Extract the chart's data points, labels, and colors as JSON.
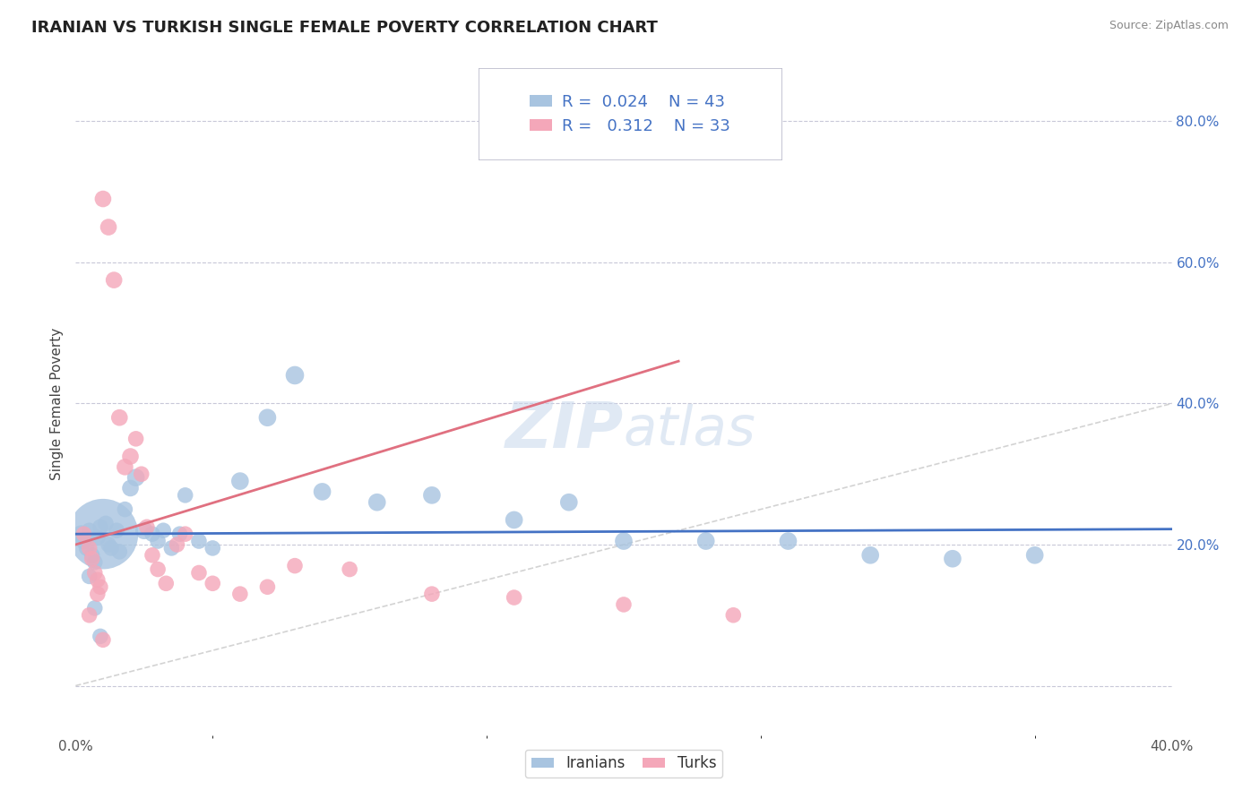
{
  "title": "IRANIAN VS TURKISH SINGLE FEMALE POVERTY CORRELATION CHART",
  "source": "Source: ZipAtlas.com",
  "ylabel": "Single Female Poverty",
  "iranian_R": "0.024",
  "iranian_N": "43",
  "turkish_R": "0.312",
  "turkish_N": "33",
  "iranian_color": "#a8c4e0",
  "turkish_color": "#f4a7b9",
  "iranian_line_color": "#4472c4",
  "turkish_line_color": "#e07080",
  "diagonal_color": "#c8c8c8",
  "legend_label_iranian": "Iranians",
  "legend_label_turkish": "Turks",
  "watermark_zip": "ZIP",
  "watermark_atlas": "atlas",
  "xmin": 0.0,
  "xmax": 0.4,
  "ymin": -0.07,
  "ymax": 0.87,
  "ytick_vals": [
    0.0,
    0.2,
    0.4,
    0.6,
    0.8
  ],
  "iran_x": [
    0.002,
    0.003,
    0.004,
    0.005,
    0.006,
    0.007,
    0.008,
    0.009,
    0.01,
    0.011,
    0.012,
    0.013,
    0.015,
    0.016,
    0.018,
    0.02,
    0.022,
    0.025,
    0.028,
    0.03,
    0.032,
    0.035,
    0.038,
    0.04,
    0.045,
    0.05,
    0.06,
    0.07,
    0.08,
    0.09,
    0.11,
    0.13,
    0.16,
    0.18,
    0.2,
    0.23,
    0.26,
    0.29,
    0.32,
    0.35,
    0.005,
    0.007,
    0.009
  ],
  "iran_y": [
    0.215,
    0.205,
    0.195,
    0.22,
    0.185,
    0.175,
    0.21,
    0.225,
    0.215,
    0.23,
    0.2,
    0.195,
    0.22,
    0.19,
    0.25,
    0.28,
    0.295,
    0.22,
    0.215,
    0.205,
    0.22,
    0.195,
    0.215,
    0.27,
    0.205,
    0.195,
    0.29,
    0.38,
    0.44,
    0.275,
    0.26,
    0.27,
    0.235,
    0.26,
    0.205,
    0.205,
    0.205,
    0.185,
    0.18,
    0.185,
    0.155,
    0.11,
    0.07
  ],
  "iran_size": [
    200,
    180,
    160,
    160,
    160,
    160,
    160,
    160,
    3200,
    160,
    160,
    160,
    160,
    160,
    160,
    180,
    200,
    200,
    160,
    160,
    160,
    160,
    160,
    160,
    160,
    160,
    200,
    200,
    220,
    200,
    200,
    200,
    200,
    200,
    200,
    200,
    200,
    200,
    200,
    200,
    160,
    160,
    160
  ],
  "turk_x": [
    0.003,
    0.005,
    0.006,
    0.007,
    0.008,
    0.009,
    0.01,
    0.012,
    0.014,
    0.016,
    0.018,
    0.02,
    0.022,
    0.024,
    0.026,
    0.028,
    0.03,
    0.033,
    0.037,
    0.04,
    0.045,
    0.05,
    0.06,
    0.07,
    0.08,
    0.1,
    0.13,
    0.16,
    0.2,
    0.24,
    0.005,
    0.008,
    0.01
  ],
  "turk_y": [
    0.215,
    0.195,
    0.18,
    0.16,
    0.15,
    0.14,
    0.69,
    0.65,
    0.575,
    0.38,
    0.31,
    0.325,
    0.35,
    0.3,
    0.225,
    0.185,
    0.165,
    0.145,
    0.2,
    0.215,
    0.16,
    0.145,
    0.13,
    0.14,
    0.17,
    0.165,
    0.13,
    0.125,
    0.115,
    0.1,
    0.1,
    0.13,
    0.065
  ],
  "turk_size": [
    160,
    160,
    160,
    160,
    160,
    160,
    180,
    180,
    180,
    180,
    180,
    180,
    160,
    160,
    160,
    160,
    160,
    160,
    160,
    160,
    160,
    160,
    160,
    160,
    160,
    160,
    160,
    160,
    160,
    160,
    160,
    160,
    160
  ]
}
